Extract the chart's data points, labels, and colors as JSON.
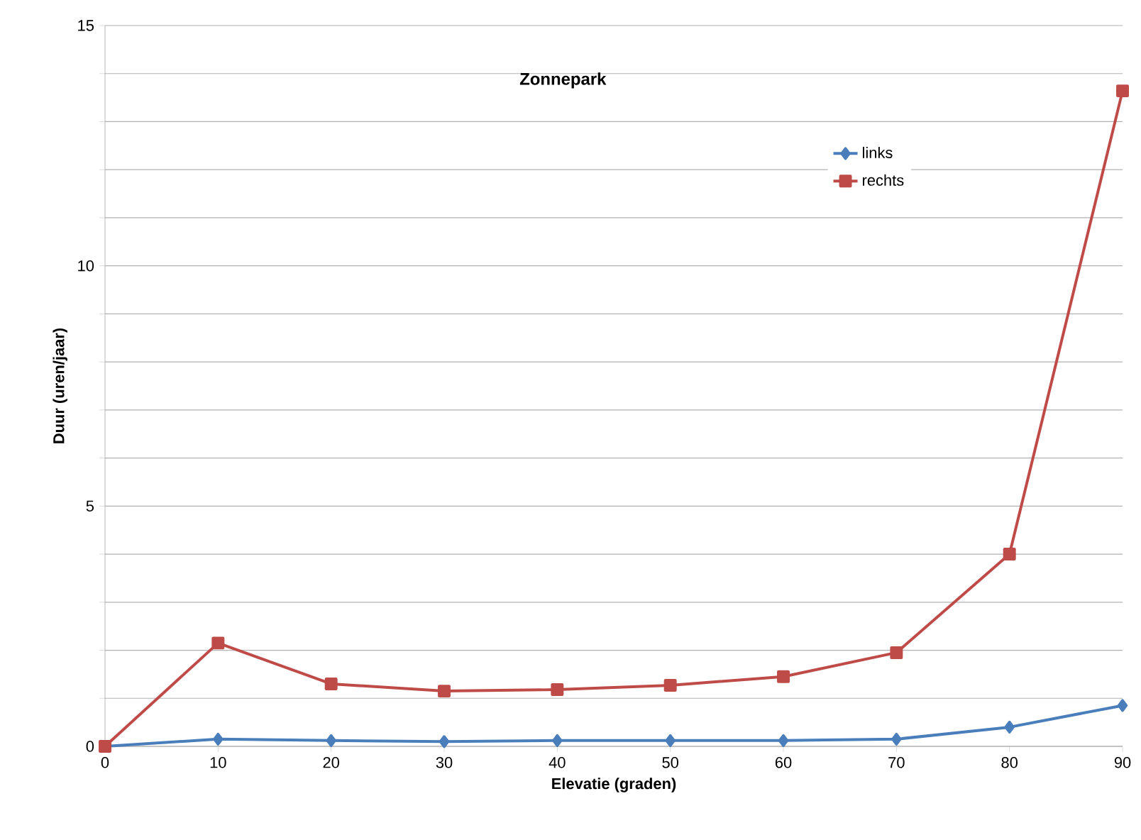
{
  "chart_data": {
    "type": "line",
    "title": "Zonnepark",
    "xlabel": "Elevatie (graden)",
    "ylabel": "Duur (uren/jaar)",
    "x": [
      0,
      10,
      20,
      30,
      40,
      50,
      60,
      70,
      80,
      90
    ],
    "series": [
      {
        "name": "links",
        "color": "#4a7ebb",
        "marker": "diamond",
        "values": [
          0,
          0.15,
          0.12,
          0.1,
          0.12,
          0.12,
          0.12,
          0.15,
          0.4,
          0.85
        ]
      },
      {
        "name": "rechts",
        "color": "#be4b48",
        "marker": "square",
        "values": [
          0,
          2.15,
          1.3,
          1.15,
          1.18,
          1.27,
          1.45,
          1.95,
          4.0,
          13.64
        ]
      }
    ],
    "xlim": [
      0,
      90
    ],
    "ylim": [
      0,
      15
    ],
    "xticks": [
      0,
      10,
      20,
      30,
      40,
      50,
      60,
      70,
      80,
      90
    ],
    "yticks": [
      0,
      {
        "value": 1,
        "label": null
      },
      {
        "value": 2,
        "label": null
      },
      {
        "value": 3,
        "label": null
      },
      {
        "value": 4,
        "label": null
      },
      5,
      {
        "value": 6,
        "label": null
      },
      {
        "value": 7,
        "label": null
      },
      {
        "value": 8,
        "label": null
      },
      {
        "value": 9,
        "label": null
      },
      10,
      {
        "value": 11,
        "label": null
      },
      {
        "value": 12,
        "label": null
      },
      {
        "value": 13,
        "label": null
      },
      {
        "value": 14,
        "label": null
      },
      15
    ],
    "grid": "y",
    "legend": "top right",
    "line_style": "solid"
  }
}
